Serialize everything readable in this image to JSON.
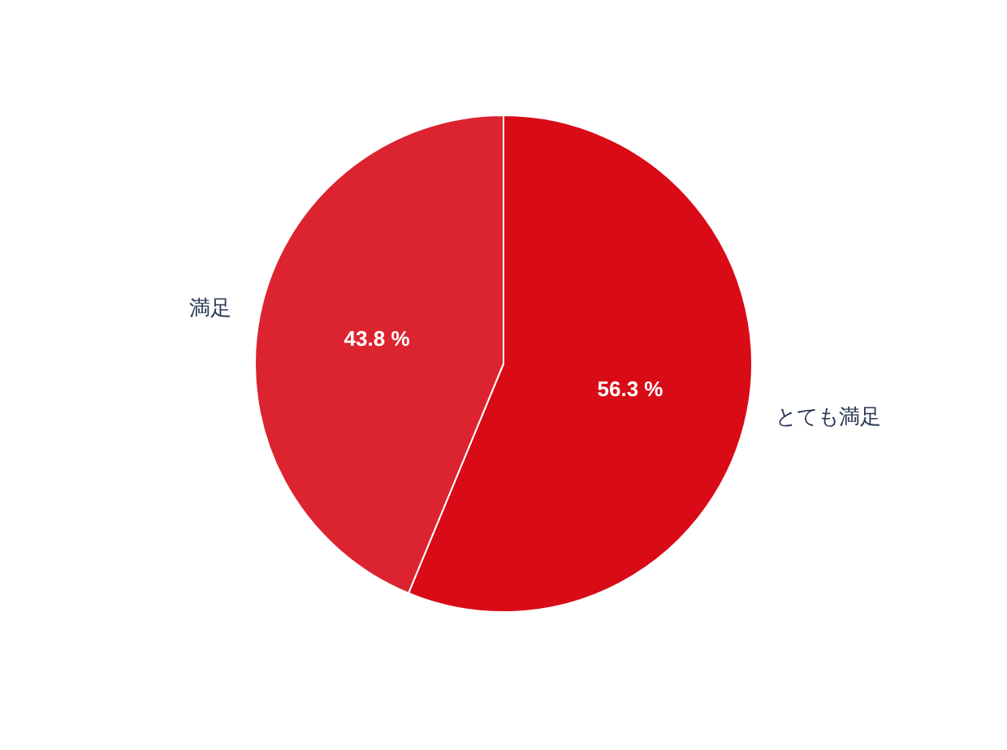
{
  "chart_data": {
    "type": "pie",
    "categories": [
      "とても満足",
      "満足"
    ],
    "values": [
      56.3,
      43.8
    ],
    "colors": [
      "#d90b17",
      "#dc2430"
    ],
    "value_labels": [
      "56.3 %",
      "43.8 %"
    ]
  }
}
